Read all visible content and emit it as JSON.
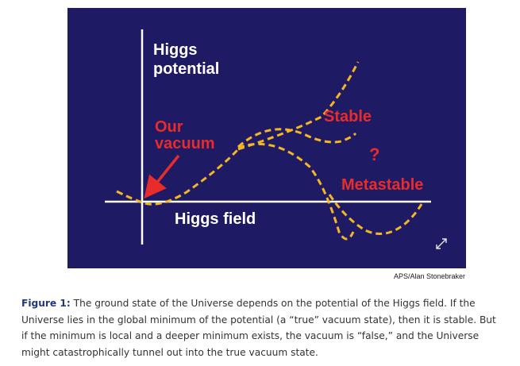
{
  "figure": {
    "labels": {
      "y_axis": "Higgs potential",
      "x_axis": "Higgs field",
      "our_vacuum": "Our vacuum",
      "stable": "Stable",
      "question_mark": "?",
      "metastable": "Metastable"
    },
    "colors": {
      "background": "#1e1a63",
      "axes": "#ffffff",
      "curves": "#f5b625",
      "highlight_text": "#e82b2b"
    },
    "icons": [
      "red-arrow-icon",
      "expand-icon"
    ],
    "credit": "APS/Alan Stonebraker"
  },
  "caption": {
    "label": "Figure 1:",
    "text": " The ground state of the Universe depends on the potential of the Higgs field. If the Universe lies in the global minimum of the potential (a “true” vacuum state), then it is stable. But if the minimum is local and a deeper minimum exists, the vacuum is “false,” and the Universe might catastrophically tunnel out into the true vacuum state."
  }
}
